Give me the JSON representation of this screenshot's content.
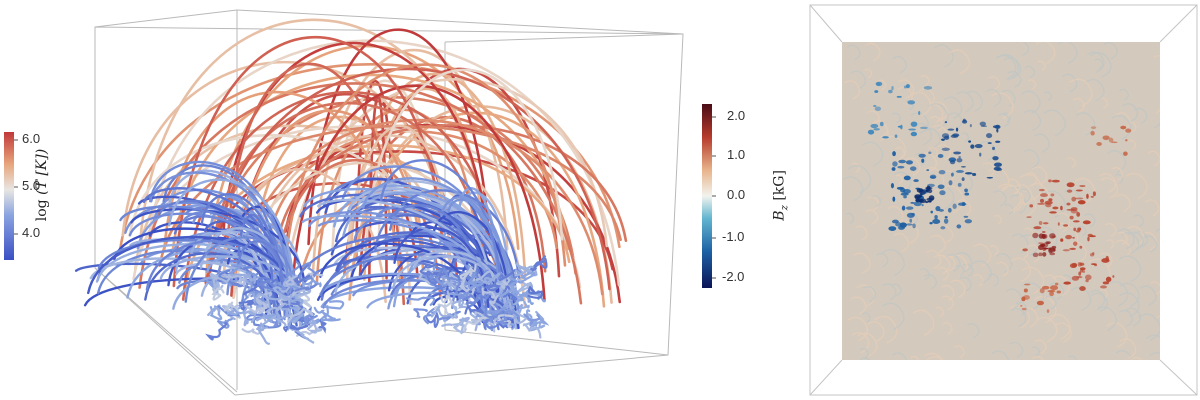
{
  "left_panel": {
    "colorbar": {
      "label_func": "log",
      "label_var": "(T [K])",
      "ticks": [
        "6.0",
        "5.0",
        "4.0"
      ],
      "tick_values": [
        6.0,
        5.0,
        4.0
      ],
      "range": [
        3.6,
        6.3
      ],
      "colors": [
        "#3a4fc4",
        "#8aa4e0",
        "#e8e6e2",
        "#e7a57c",
        "#c1393a"
      ]
    }
  },
  "right_panel": {
    "colorbar": {
      "label_var": "B",
      "label_sub": "z",
      "label_unit": "[kG]",
      "ticks": [
        "2.0",
        "1.0",
        "0.0",
        "-1.0",
        "-2.0"
      ],
      "tick_values": [
        2.0,
        1.0,
        0.0,
        -1.0,
        -2.0
      ],
      "range": [
        -2.4,
        2.4
      ],
      "colors": [
        "#0b1456",
        "#1d62a5",
        "#63b6d0",
        "#f2f3ee",
        "#e8b48b",
        "#b63b2c",
        "#4a0c16"
      ]
    },
    "magnetogram_background": "#d4c9bd"
  }
}
